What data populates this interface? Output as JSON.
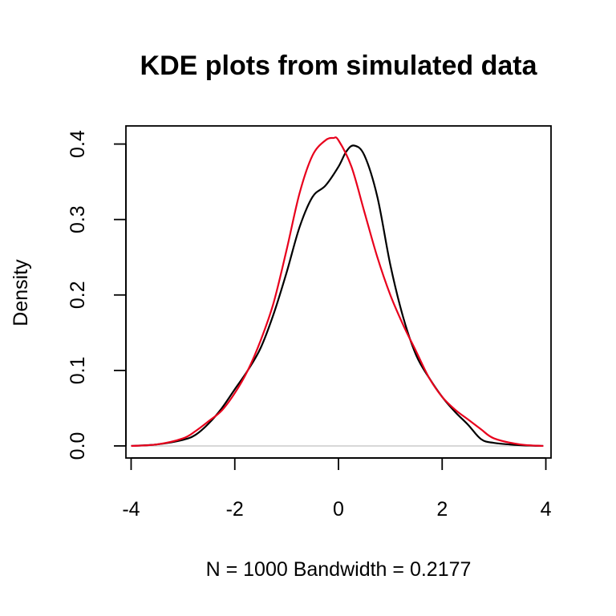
{
  "chart_data": {
    "type": "line",
    "title": "KDE plots from simulated data",
    "xlabel": "N = 1000   Bandwidth = 0.2177",
    "ylabel": "Density",
    "xlim": [
      -4.1,
      4.1
    ],
    "ylim": [
      -0.016,
      0.424
    ],
    "x_ticks": [
      -4,
      -2,
      0,
      2,
      4
    ],
    "x_tick_labels": [
      "-4",
      "-2",
      "0",
      "2",
      "4"
    ],
    "y_ticks": [
      0.0,
      0.1,
      0.2,
      0.3,
      0.4
    ],
    "y_tick_labels": [
      "0.0",
      "0.1",
      "0.2",
      "0.3",
      "0.4"
    ],
    "grid": false,
    "legend": "none",
    "baseline": {
      "y": 0,
      "color": "#cccccc"
    },
    "series": [
      {
        "color": "#000000",
        "x": [
          -4.0,
          -3.5,
          -3.0,
          -2.75,
          -2.5,
          -2.25,
          -2.0,
          -1.75,
          -1.5,
          -1.25,
          -1.0,
          -0.75,
          -0.5,
          -0.25,
          0.0,
          0.15,
          0.3,
          0.5,
          0.75,
          1.0,
          1.25,
          1.5,
          1.75,
          2.0,
          2.25,
          2.5,
          2.75,
          3.0,
          3.5,
          3.95
        ],
        "y": [
          0.0,
          0.002,
          0.008,
          0.015,
          0.03,
          0.05,
          0.075,
          0.1,
          0.13,
          0.175,
          0.23,
          0.29,
          0.33,
          0.345,
          0.37,
          0.39,
          0.398,
          0.385,
          0.33,
          0.24,
          0.17,
          0.12,
          0.09,
          0.065,
          0.045,
          0.028,
          0.009,
          0.004,
          0.001,
          0.0
        ]
      },
      {
        "color": "#e8001c",
        "x": [
          -4.0,
          -3.5,
          -3.0,
          -2.75,
          -2.5,
          -2.25,
          -2.0,
          -1.75,
          -1.5,
          -1.25,
          -1.0,
          -0.75,
          -0.5,
          -0.25,
          -0.1,
          0.0,
          0.25,
          0.5,
          0.75,
          1.0,
          1.25,
          1.5,
          1.75,
          2.0,
          2.25,
          2.5,
          2.75,
          3.0,
          3.5,
          3.95
        ],
        "y": [
          0.0,
          0.002,
          0.01,
          0.02,
          0.033,
          0.047,
          0.07,
          0.1,
          0.14,
          0.19,
          0.26,
          0.335,
          0.385,
          0.405,
          0.408,
          0.405,
          0.37,
          0.31,
          0.25,
          0.2,
          0.16,
          0.125,
          0.09,
          0.065,
          0.048,
          0.035,
          0.022,
          0.01,
          0.002,
          0.0
        ]
      }
    ]
  }
}
